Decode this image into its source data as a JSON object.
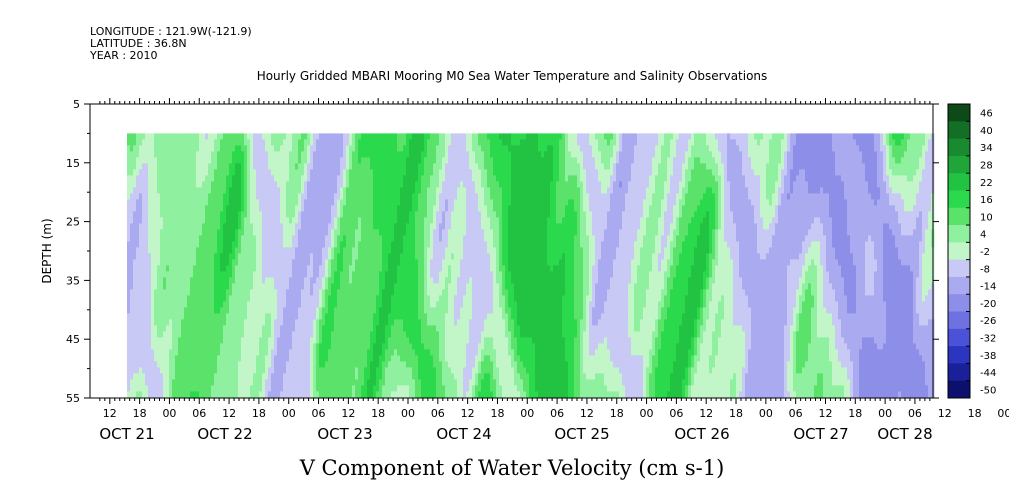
{
  "header": {
    "longitude": "LONGITUDE : 121.9W(-121.9)",
    "latitude": "LATITUDE : 36.8N",
    "year": "YEAR : 2010"
  },
  "chart_data": {
    "type": "heatmap",
    "title": "Hourly Gridded MBARI Mooring M0 Sea Water Temperature and Salinity Observations",
    "xlabel": "V Component of Water Velocity (cm s-1)",
    "ylabel": "DEPTH (m)",
    "y_range": [
      5,
      55
    ],
    "y_ticks": [
      5,
      15,
      25,
      35,
      45,
      55
    ],
    "y_inverted": true,
    "data_depth_range": [
      10,
      55
    ],
    "x_hour_ticks": [
      "12",
      "18",
      "00",
      "06",
      "12",
      "18",
      "00",
      "06",
      "12",
      "18",
      "00",
      "06",
      "12",
      "18",
      "00",
      "06",
      "12",
      "18",
      "00",
      "06",
      "12",
      "18",
      "00",
      "06",
      "12",
      "18",
      "00",
      "06",
      "12",
      "18",
      "00",
      "06",
      "12",
      "18",
      "00",
      "06"
    ],
    "x_date_labels": [
      "OCT 21",
      "OCT 22",
      "OCT 23",
      "OCT 24",
      "OCT 25",
      "OCT 26",
      "OCT 27",
      "OCT 28"
    ],
    "colorbar": {
      "levels": [
        "46",
        "40",
        "34",
        "28",
        "22",
        "16",
        "10",
        "4",
        "-2",
        "-8",
        "-14",
        "-20",
        "-26",
        "-32",
        "-38",
        "-44",
        "-50"
      ],
      "colors": [
        "#0d4a18",
        "#136e26",
        "#1a8a30",
        "#1fa53a",
        "#22c242",
        "#2bd94c",
        "#5ae26a",
        "#8ff0a0",
        "#c2f5c8",
        "#c9c9f5",
        "#a9aaf0",
        "#8c8ee8",
        "#6e72e0",
        "#4a52d8",
        "#2a35c0",
        "#1a1f9a",
        "#0c0f6e"
      ]
    },
    "field_description_bands": [
      {
        "day": "OCT 21",
        "hour": 14,
        "width_h": 4,
        "value": -8
      },
      {
        "day": "OCT 22",
        "hour": 0,
        "width_h": 8,
        "value": 10
      },
      {
        "day": "OCT 22",
        "hour": 20,
        "width_h": 4,
        "value": -8
      },
      {
        "day": "OCT 23",
        "hour": 20,
        "width_h": 6,
        "value": 22
      },
      {
        "day": "OCT 24",
        "hour": 14,
        "width_h": 4,
        "value": -14
      },
      {
        "day": "OCT 24",
        "hour": 20,
        "width_h": 10,
        "value": 28
      },
      {
        "day": "OCT 25",
        "hour": 14,
        "width_h": 4,
        "value": -8
      },
      {
        "day": "OCT 26",
        "hour": 18,
        "width_h": 6,
        "value": -14
      },
      {
        "day": "OCT 27",
        "hour": 12,
        "width_h": 8,
        "value": -20
      },
      {
        "day": "OCT 27",
        "hour": 22,
        "width_h": 6,
        "value": -20
      }
    ]
  }
}
